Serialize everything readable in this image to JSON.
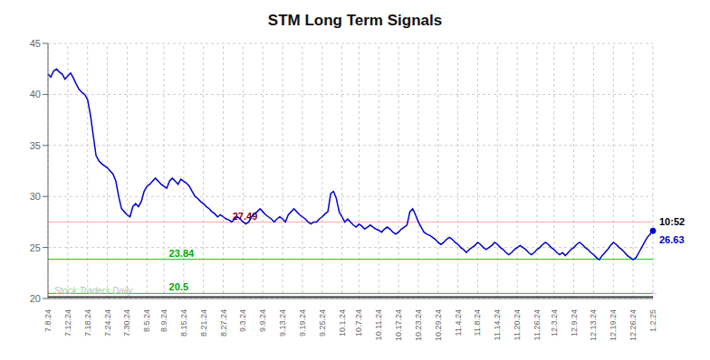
{
  "chart_data": {
    "type": "line",
    "title": "STM Long Term Signals",
    "categories": [
      "7.8.24",
      null,
      null,
      null,
      null,
      null,
      null,
      "7.12.24",
      null,
      null,
      null,
      null,
      null,
      null,
      "7.18.24",
      null,
      null,
      null,
      null,
      null,
      null,
      "7.24.24",
      null,
      null,
      null,
      null,
      null,
      null,
      "7.30.24",
      null,
      null,
      null,
      null,
      null,
      null,
      "8.5.24",
      null,
      null,
      null,
      null,
      null,
      "8.9.24",
      null,
      null,
      null,
      null,
      null,
      null,
      "8.15.24",
      null,
      null,
      null,
      null,
      null,
      null,
      "8.21.24",
      null,
      null,
      null,
      null,
      null,
      null,
      "8.27.24",
      null,
      null,
      null,
      null,
      null,
      null,
      "9.3.24",
      null,
      null,
      null,
      null,
      null,
      null,
      "9.9.24",
      null,
      null,
      null,
      null,
      null,
      null,
      "9.13.24",
      null,
      null,
      null,
      null,
      null,
      null,
      "9.19.24",
      null,
      null,
      null,
      null,
      null,
      null,
      "9.25.24",
      null,
      null,
      null,
      null,
      null,
      null,
      "10.1.24",
      null,
      null,
      null,
      null,
      null,
      "10.7.24",
      null,
      null,
      null,
      null,
      null,
      null,
      "10.11.24",
      null,
      null,
      null,
      null,
      null,
      null,
      "10.17.24",
      null,
      null,
      null,
      null,
      null,
      null,
      "10.23.24",
      null,
      null,
      null,
      null,
      null,
      null,
      "10.29.24",
      null,
      null,
      null,
      null,
      null,
      null,
      "11.4.24",
      null,
      null,
      null,
      null,
      null,
      null,
      "11.8.24",
      null,
      null,
      null,
      null,
      null,
      null,
      "11.14.24",
      null,
      null,
      null,
      null,
      null,
      null,
      "11.20.24",
      null,
      null,
      null,
      null,
      null,
      null,
      "11.26.24",
      null,
      null,
      null,
      null,
      null,
      "12.3.24",
      null,
      null,
      null,
      null,
      null,
      null,
      "12.9.24",
      null,
      null,
      null,
      null,
      null,
      null,
      "12.13.24",
      null,
      null,
      null,
      null,
      null,
      null,
      "12.19.24",
      null,
      null,
      null,
      null,
      null,
      null,
      "12.26.24",
      null,
      null,
      null,
      null,
      null,
      null,
      "1.2.25"
    ],
    "values": [
      42.0,
      41.7,
      42.3,
      42.5,
      42.2,
      42.0,
      41.5,
      41.8,
      42.1,
      41.6,
      41.0,
      40.5,
      40.2,
      40.0,
      39.5,
      38.0,
      36.0,
      34.0,
      33.5,
      33.2,
      33.0,
      32.8,
      32.5,
      32.2,
      31.5,
      30.0,
      28.8,
      28.5,
      28.2,
      28.0,
      29.0,
      29.3,
      29.0,
      29.5,
      30.5,
      31.0,
      31.2,
      31.5,
      31.8,
      31.5,
      31.2,
      31.0,
      30.8,
      31.5,
      31.8,
      31.5,
      31.2,
      31.7,
      31.5,
      31.3,
      31.0,
      30.5,
      30.0,
      29.8,
      29.5,
      29.3,
      29.0,
      28.8,
      28.5,
      28.3,
      28.0,
      28.2,
      28.0,
      27.8,
      27.7,
      27.5,
      27.8,
      28.0,
      27.8,
      27.5,
      27.3,
      27.5,
      28.0,
      28.3,
      28.5,
      28.8,
      28.5,
      28.2,
      28.0,
      27.8,
      27.5,
      27.8,
      28.0,
      27.8,
      27.5,
      28.2,
      28.5,
      28.8,
      28.5,
      28.2,
      28.0,
      27.8,
      27.5,
      27.3,
      27.5,
      27.49,
      27.8,
      28.0,
      28.3,
      28.5,
      30.3,
      30.5,
      29.8,
      28.5,
      28.0,
      27.5,
      27.8,
      27.5,
      27.2,
      27.0,
      27.3,
      27.1,
      26.8,
      27.0,
      27.2,
      27.0,
      26.8,
      26.7,
      26.5,
      26.8,
      27.0,
      26.8,
      26.5,
      26.3,
      26.5,
      26.8,
      27.0,
      27.2,
      28.5,
      28.8,
      28.2,
      27.5,
      27.0,
      26.5,
      26.3,
      26.2,
      26.0,
      25.8,
      25.5,
      25.3,
      25.5,
      25.8,
      26.0,
      25.8,
      25.5,
      25.3,
      25.0,
      24.8,
      24.5,
      24.8,
      25.0,
      25.2,
      25.5,
      25.3,
      25.0,
      24.8,
      25.0,
      25.2,
      25.5,
      25.3,
      25.0,
      24.8,
      24.5,
      24.3,
      24.5,
      24.8,
      25.0,
      25.2,
      25.0,
      24.8,
      24.5,
      24.3,
      24.5,
      24.8,
      25.0,
      25.3,
      25.5,
      25.3,
      25.0,
      24.8,
      24.5,
      24.3,
      24.5,
      24.2,
      24.5,
      24.8,
      25.0,
      25.3,
      25.5,
      25.3,
      25.0,
      24.8,
      24.5,
      24.3,
      24.0,
      23.8,
      24.2,
      24.5,
      24.8,
      25.2,
      25.5,
      25.3,
      25.0,
      24.8,
      24.5,
      24.2,
      24.0,
      23.8,
      24.0,
      24.5,
      25.0,
      25.5,
      26.0,
      26.3,
      26.63
    ],
    "color": "#0000cc",
    "ylim": [
      20,
      45
    ],
    "yticks": [
      20,
      25,
      30,
      35,
      40,
      45
    ],
    "grid": true,
    "reference_lines": [
      {
        "value": 27.49,
        "color": "#ffaaaa",
        "label": "27.49",
        "label_color": "#880000"
      },
      {
        "value": 23.84,
        "color": "#00cc00",
        "label": "23.84",
        "label_color": "#00aa00"
      },
      {
        "value": 20.5,
        "color": "#00cc00",
        "label": "20.5",
        "label_color": "#00aa00"
      },
      {
        "value": 20.15,
        "color": "#333333",
        "label": "Stock Traders Daily",
        "label_color": "#bbbbbb"
      }
    ],
    "last_point_labels": [
      {
        "text": "10:52",
        "color": "#000000"
      },
      {
        "text": "26.63",
        "color": "#0000cc"
      }
    ]
  }
}
